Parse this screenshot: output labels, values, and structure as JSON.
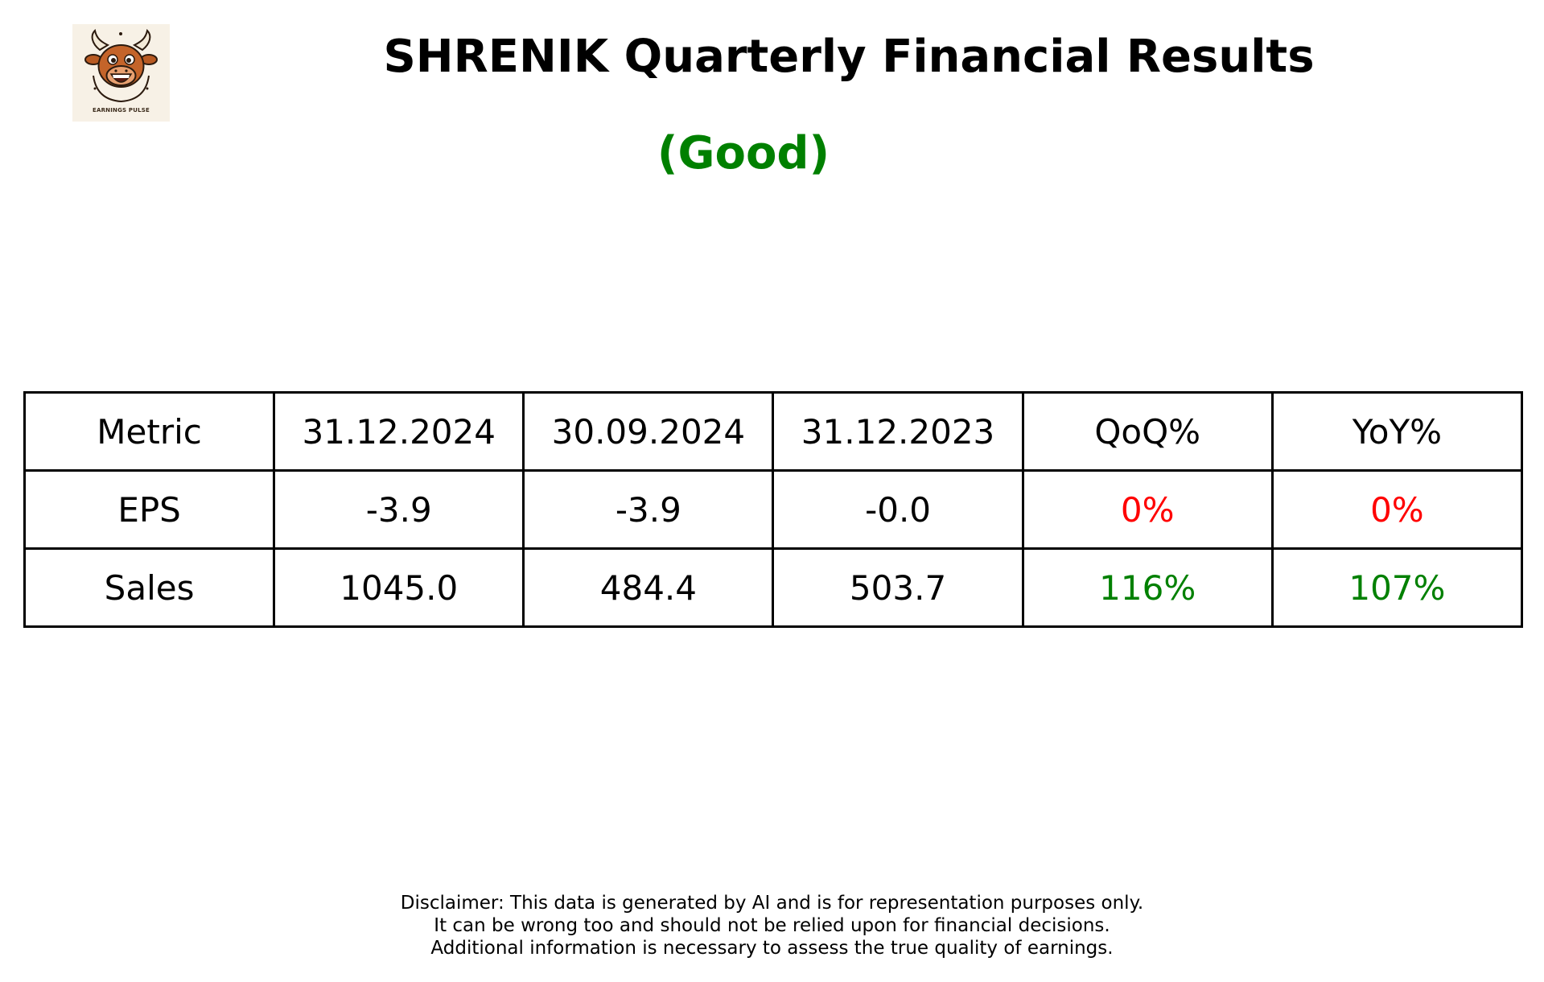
{
  "logo": {
    "caption": "EARNINGS PULSE",
    "icon": "bull-mascot-icon"
  },
  "title": "SHRENIK Quarterly Financial Results",
  "status": {
    "label": "(Good)",
    "color": "#008000"
  },
  "table": {
    "headers": [
      "Metric",
      "31.12.2024",
      "30.09.2024",
      "31.12.2023",
      "QoQ%",
      "YoY%"
    ],
    "rows": [
      {
        "metric": "EPS",
        "q_dec_2024": "-3.9",
        "q_sep_2024": "-3.9",
        "q_dec_2023": "-0.0",
        "qoq": "0%",
        "yoy": "0%",
        "qoq_color": "#ff0000",
        "yoy_color": "#ff0000"
      },
      {
        "metric": "Sales",
        "q_dec_2024": "1045.0",
        "q_sep_2024": "484.4",
        "q_dec_2023": "503.7",
        "qoq": "116%",
        "yoy": "107%",
        "qoq_color": "#008000",
        "yoy_color": "#008000"
      }
    ]
  },
  "disclaimer": [
    "Disclaimer: This data is generated by AI and is for representation purposes only.",
    "It can be wrong too and should not be relied upon for financial decisions.",
    "Additional information is necessary to assess the true quality of earnings."
  ]
}
